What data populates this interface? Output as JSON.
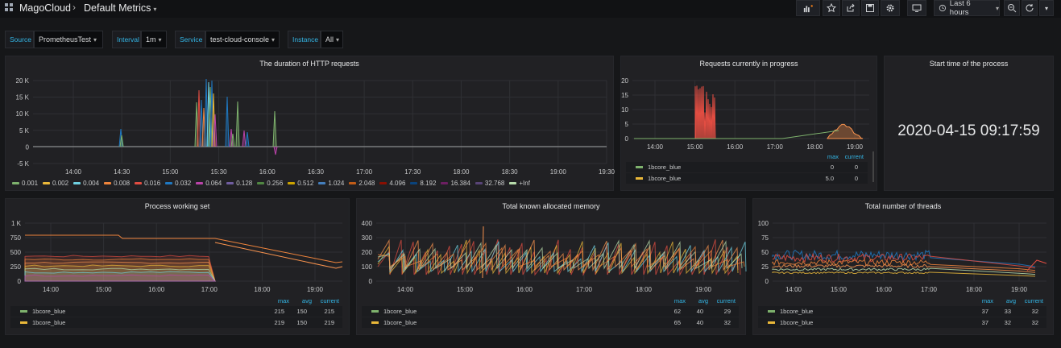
{
  "topbar": {
    "breadcrumb_root": "MagoCloud",
    "breadcrumb_sep": "›",
    "dashboard_title": "Default Metrics",
    "caret": "▾",
    "time_range": "Last 6 hours",
    "icons": [
      "add-panel-icon",
      "star-icon",
      "share-icon",
      "save-icon",
      "gear-icon",
      "tv-mode-icon",
      "clock-icon",
      "zoom-out-icon",
      "refresh-icon",
      "refresh-caret-icon"
    ]
  },
  "variables": [
    {
      "label": "Source",
      "value": "PrometheusTest"
    },
    {
      "label": "Interval",
      "value": "1m"
    },
    {
      "label": "Service",
      "value": "test-cloud-console"
    },
    {
      "label": "Instance",
      "value": "All"
    }
  ],
  "colors": {
    "accent": "#33b5e5",
    "panel": "#212124",
    "bg": "#161719",
    "green": "#7eb26d",
    "yellow": "#eab839",
    "red": "#e24d42",
    "blue": "#1f78c1",
    "cyan": "#6ed0e0",
    "orange": "#ef843c",
    "purple": "#ba43a9",
    "peach": "#f9934e"
  },
  "panels": {
    "http_duration": {
      "title": "The duration of HTTP requests",
      "y_ticks": [
        "20 K",
        "15 K",
        "10 K",
        "5 K",
        "0",
        "-5 K"
      ],
      "x_ticks": [
        "14:00",
        "14:30",
        "15:00",
        "15:30",
        "16:00",
        "16:30",
        "17:00",
        "17:30",
        "18:00",
        "18:30",
        "19:00",
        "19:30"
      ],
      "legend": [
        {
          "label": "0.001",
          "color": "#7eb26d"
        },
        {
          "label": "0.002",
          "color": "#eab839"
        },
        {
          "label": "0.004",
          "color": "#6ed0e0"
        },
        {
          "label": "0.008",
          "color": "#ef843c"
        },
        {
          "label": "0.016",
          "color": "#e24d42"
        },
        {
          "label": "0.032",
          "color": "#1f78c1"
        },
        {
          "label": "0.064",
          "color": "#ba43a9"
        },
        {
          "label": "0.128",
          "color": "#705da0"
        },
        {
          "label": "0.256",
          "color": "#508642"
        },
        {
          "label": "0.512",
          "color": "#cca300"
        },
        {
          "label": "1.024",
          "color": "#447ebc"
        },
        {
          "label": "2.048",
          "color": "#c15c17"
        },
        {
          "label": "4.096",
          "color": "#890f02"
        },
        {
          "label": "8.192",
          "color": "#0a437c"
        },
        {
          "label": "16.384",
          "color": "#6d1f62"
        },
        {
          "label": "32.768",
          "color": "#584477"
        },
        {
          "label": "+Inf",
          "color": "#b7dbab"
        }
      ]
    },
    "in_progress": {
      "title": "Requests currently in progress",
      "y_ticks": [
        "20",
        "15",
        "10",
        "5",
        "0"
      ],
      "x_ticks": [
        "14:00",
        "15:00",
        "16:00",
        "17:00",
        "18:00",
        "19:00"
      ],
      "headers": [
        "max",
        "current"
      ],
      "rows": [
        {
          "name": "1bcore_blue",
          "color": "#7eb26d",
          "max": "0",
          "current": "0"
        },
        {
          "name": "1bcore_blue",
          "color": "#eab839",
          "max": "5.0",
          "current": "0"
        }
      ]
    },
    "start_time": {
      "title": "Start time of the process",
      "value": "2020-04-15 09:17:59"
    },
    "working_set": {
      "title": "Process working set",
      "y_ticks": [
        "1 K",
        "750",
        "500",
        "250",
        "0"
      ],
      "x_ticks": [
        "14:00",
        "15:00",
        "16:00",
        "17:00",
        "18:00",
        "19:00"
      ],
      "headers": [
        "max",
        "avg",
        "current"
      ],
      "rows": [
        {
          "name": "1bcore_blue",
          "color": "#7eb26d",
          "max": "215",
          "avg": "150",
          "current": "215"
        },
        {
          "name": "1bcore_blue",
          "color": "#eab839",
          "max": "219",
          "avg": "150",
          "current": "219"
        }
      ]
    },
    "allocated_memory": {
      "title": "Total known allocated memory",
      "y_ticks": [
        "400",
        "300",
        "200",
        "100",
        "0"
      ],
      "x_ticks": [
        "14:00",
        "15:00",
        "16:00",
        "17:00",
        "18:00",
        "19:00"
      ],
      "headers": [
        "max",
        "avg",
        "current"
      ],
      "rows": [
        {
          "name": "1bcore_blue",
          "color": "#7eb26d",
          "max": "62",
          "avg": "40",
          "current": "29"
        },
        {
          "name": "1bcore_blue",
          "color": "#eab839",
          "max": "65",
          "avg": "40",
          "current": "32"
        }
      ]
    },
    "threads": {
      "title": "Total number of threads",
      "y_ticks": [
        "100",
        "75",
        "50",
        "25",
        "0"
      ],
      "x_ticks": [
        "14:00",
        "15:00",
        "16:00",
        "17:00",
        "18:00",
        "19:00"
      ],
      "headers": [
        "max",
        "avg",
        "current"
      ],
      "rows": [
        {
          "name": "1bcore_blue",
          "color": "#7eb26d",
          "max": "37",
          "avg": "33",
          "current": "32"
        },
        {
          "name": "1bcore_blue",
          "color": "#eab839",
          "max": "37",
          "avg": "32",
          "current": "32"
        }
      ]
    }
  }
}
